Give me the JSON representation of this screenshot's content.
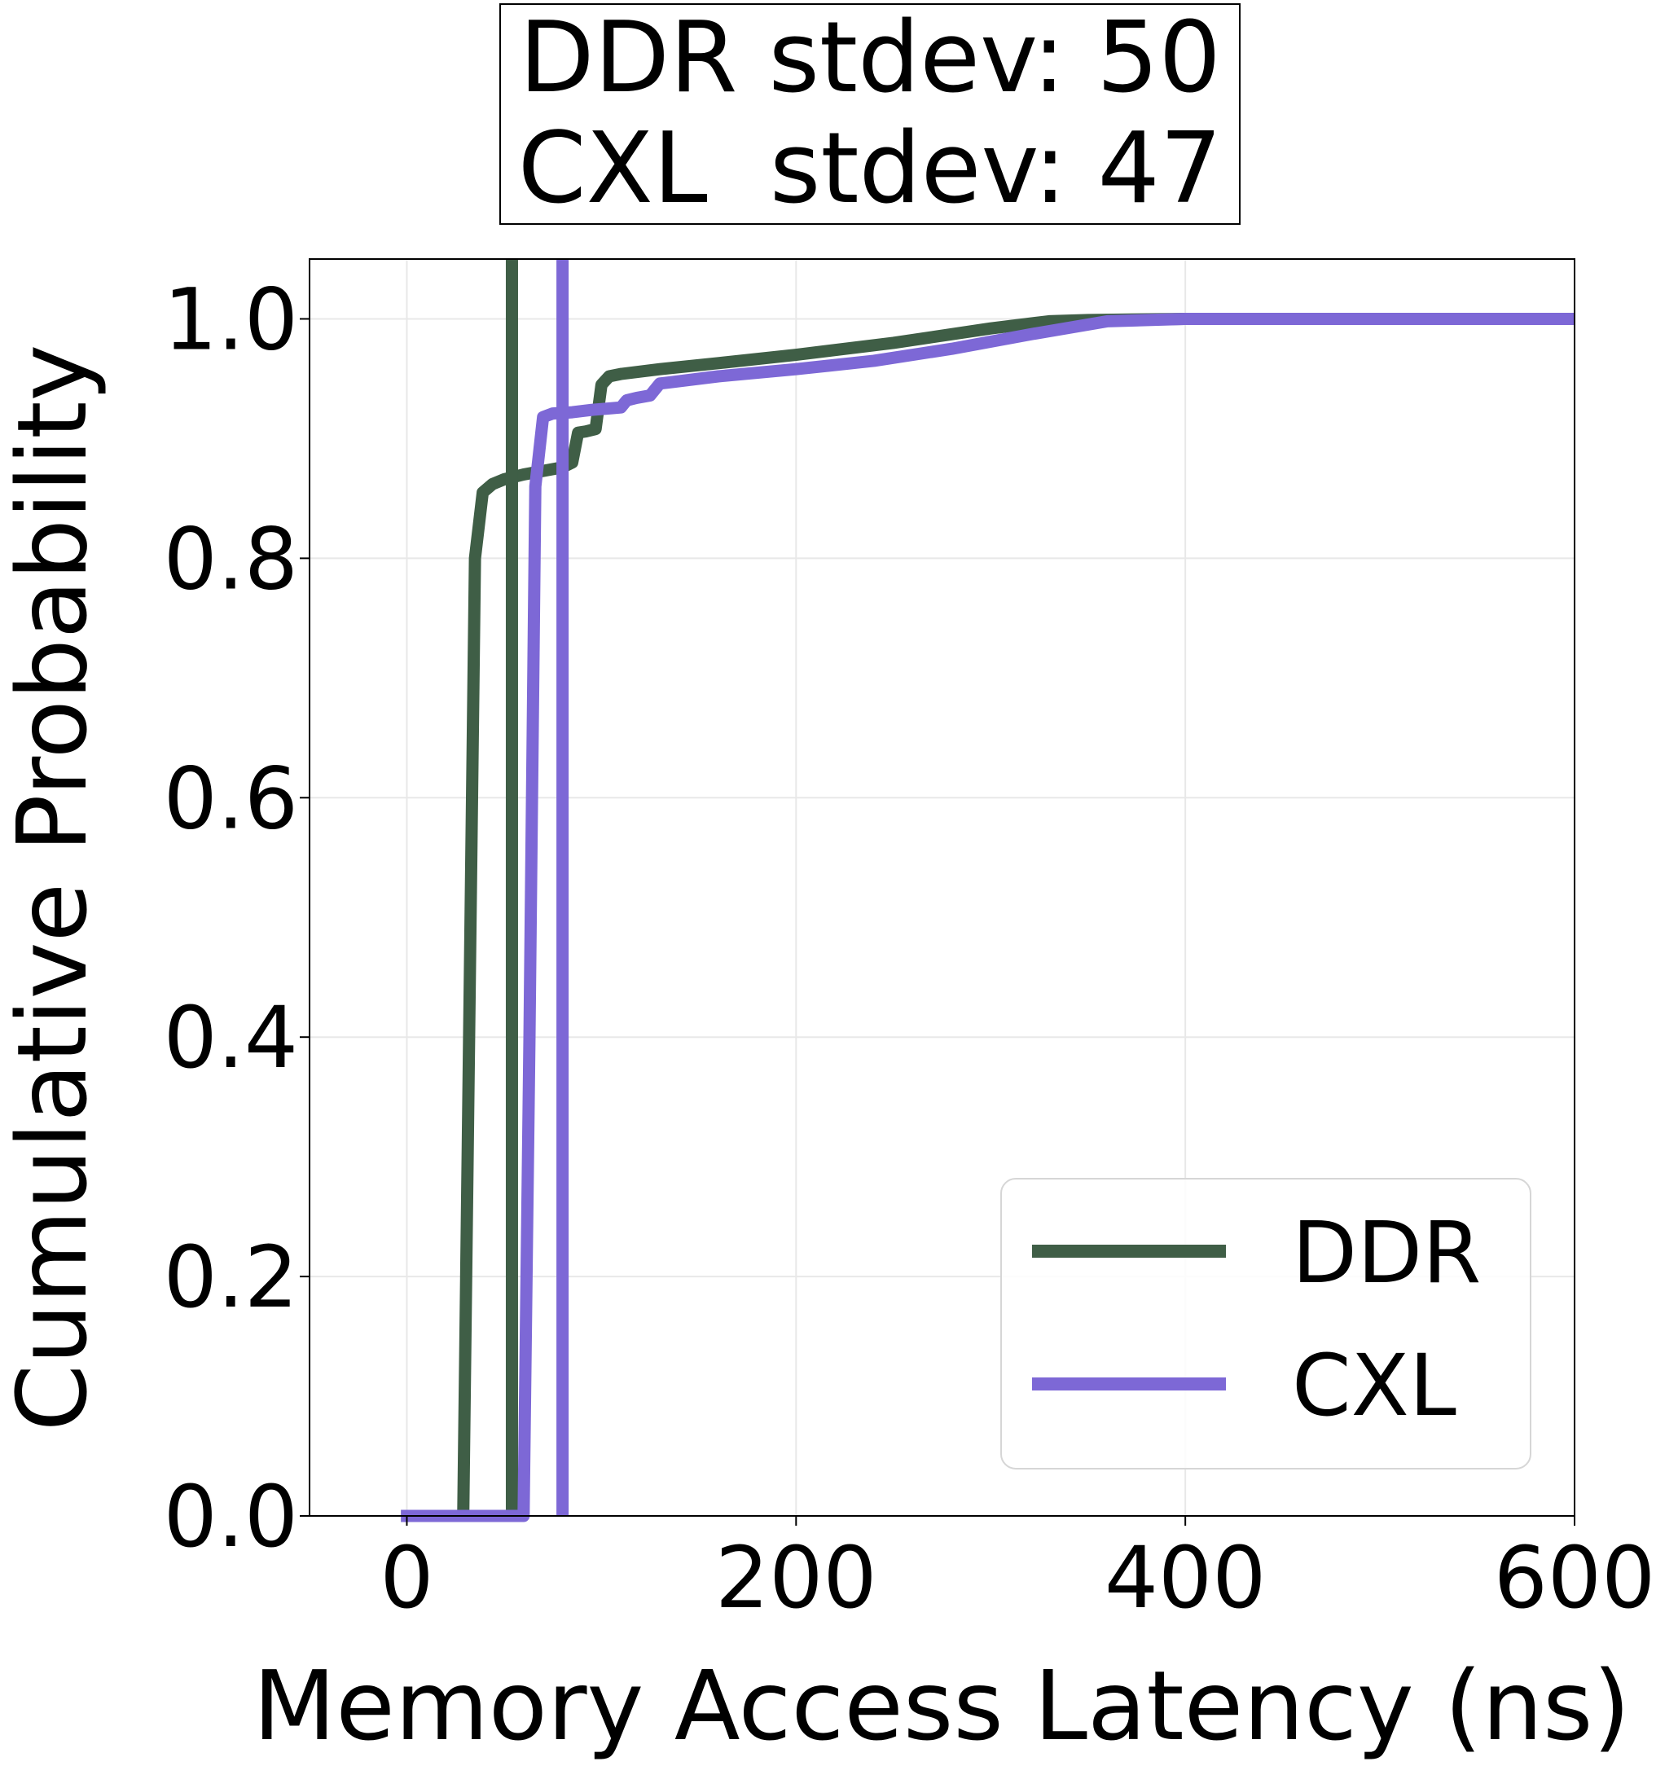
{
  "chart_data": {
    "type": "line",
    "title_lines": [
      "DDR stdev: 50",
      "CXL  stdev: 47"
    ],
    "xlabel": "Memory Access Latency (ns)",
    "ylabel": "Cumulative Probability",
    "xlim": [
      -50,
      600
    ],
    "ylim": [
      0,
      1.05
    ],
    "xticks": [
      0,
      200,
      400,
      600
    ],
    "xtick_labels": [
      "0",
      "200",
      "400",
      "600"
    ],
    "yticks": [
      0.0,
      0.2,
      0.4,
      0.6,
      0.8,
      1.0
    ],
    "ytick_labels": [
      "0.0",
      "0.2",
      "0.4",
      "0.6",
      "0.8",
      "1.0"
    ],
    "grid": true,
    "legend_position": "lower-right",
    "series": [
      {
        "name": "DDR",
        "color": "#3f5e46",
        "x": [
          -3,
          29,
          32,
          35,
          39,
          44,
          50,
          60,
          70,
          80,
          85,
          88,
          92,
          97,
          100,
          104,
          110,
          130,
          160,
          200,
          250,
          300,
          330,
          350,
          400,
          450,
          600
        ],
        "y": [
          0.0,
          0.0,
          0.4,
          0.8,
          0.855,
          0.862,
          0.866,
          0.87,
          0.873,
          0.876,
          0.88,
          0.905,
          0.906,
          0.908,
          0.945,
          0.952,
          0.954,
          0.958,
          0.963,
          0.97,
          0.98,
          0.992,
          0.998,
          0.999,
          1.0,
          1.0,
          1.0
        ],
        "mean_line_x": 54
      },
      {
        "name": "CXL",
        "color": "#7d68d6",
        "x": [
          -3,
          60,
          63,
          66,
          70,
          75,
          85,
          95,
          110,
          113,
          118,
          125,
          130,
          135,
          160,
          200,
          240,
          280,
          320,
          360,
          400,
          600
        ],
        "y": [
          0.0,
          0.0,
          0.4,
          0.86,
          0.918,
          0.921,
          0.922,
          0.924,
          0.926,
          0.932,
          0.934,
          0.936,
          0.946,
          0.947,
          0.952,
          0.958,
          0.965,
          0.975,
          0.987,
          0.998,
          1.0,
          1.0
        ],
        "mean_line_x": 80
      }
    ]
  }
}
